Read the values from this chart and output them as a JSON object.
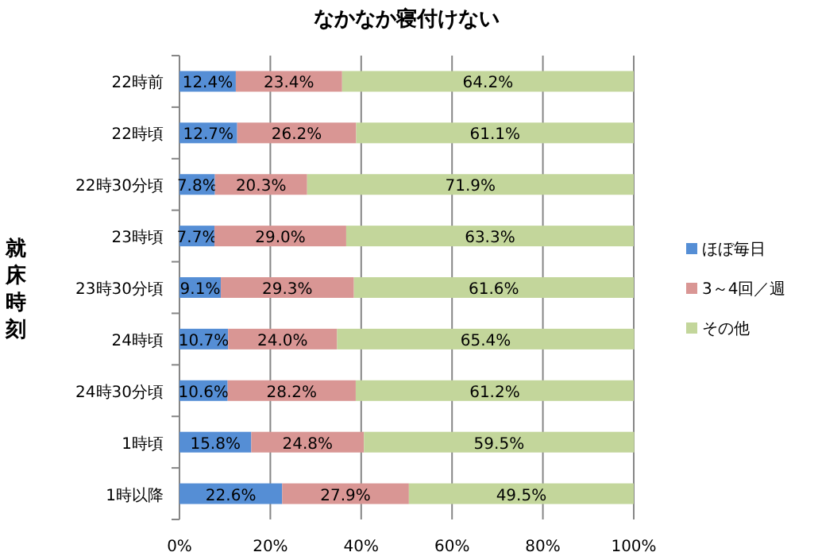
{
  "chart_data": {
    "type": "bar",
    "orientation": "horizontal",
    "stacked": true,
    "title": "なかなか寝付けない",
    "ylabel": "就床時刻",
    "categories": [
      "22時前",
      "22時頃",
      "22時30分頃",
      "23時頃",
      "23時30分頃",
      "24時頃",
      "24時30分頃",
      "1時頃",
      "1時以降"
    ],
    "series": [
      {
        "name": "ほぼ毎日",
        "color": "#558ed5",
        "values": [
          12.4,
          12.7,
          7.8,
          7.7,
          9.1,
          10.7,
          10.6,
          15.8,
          22.6
        ],
        "value_labels": [
          "12.4%",
          "12.7%",
          "7.8%",
          "7.7%",
          "9.1%",
          "10.7%",
          "10.6%",
          "15.8%",
          "22.6%"
        ]
      },
      {
        "name": "3～4回／週",
        "color": "#d99694",
        "values": [
          23.4,
          26.2,
          20.3,
          29.0,
          29.3,
          24.0,
          28.2,
          24.8,
          27.9
        ],
        "value_labels": [
          "23.4%",
          "26.2%",
          "20.3%",
          "29.0%",
          "29.3%",
          "24.0%",
          "28.2%",
          "24.8%",
          "27.9%"
        ]
      },
      {
        "name": "その他",
        "color": "#c3d69b",
        "values": [
          64.2,
          61.1,
          71.9,
          63.3,
          61.6,
          65.4,
          61.2,
          59.5,
          49.5
        ],
        "value_labels": [
          "64.2%",
          "61.1%",
          "71.9%",
          "63.3%",
          "61.6%",
          "65.4%",
          "61.2%",
          "59.5%",
          "49.5%"
        ]
      }
    ],
    "xlim": [
      0,
      100
    ],
    "xticks": [
      {
        "value": 0,
        "label": "0%"
      },
      {
        "value": 20,
        "label": "20%"
      },
      {
        "value": 40,
        "label": "40%"
      },
      {
        "value": 60,
        "label": "60%"
      },
      {
        "value": 80,
        "label": "80%"
      },
      {
        "value": 100,
        "label": "100%"
      }
    ],
    "grid": "x",
    "legend": "right"
  }
}
